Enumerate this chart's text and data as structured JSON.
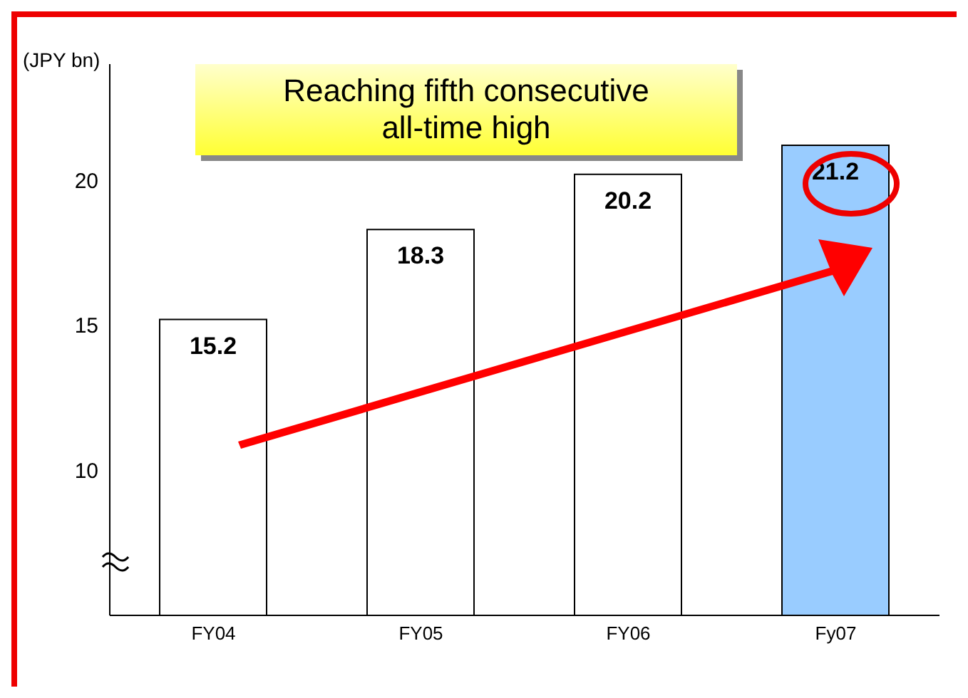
{
  "chart_data": {
    "type": "bar",
    "ylabel": "(JPY bn)",
    "annotations": [
      "Reaching fifth consecutive all-time high"
    ],
    "categories": [
      "FY04",
      "FY05",
      "FY06",
      "Fy07"
    ],
    "values": [
      15.2,
      18.3,
      20.2,
      21.2
    ],
    "colors": [
      "#ffffff",
      "#ffffff",
      "#ffffff",
      "#99ccff"
    ],
    "ylim": [
      5,
      24
    ],
    "yticks": [
      10,
      15,
      20
    ],
    "data_labels": true,
    "grid": false,
    "legend": false
  }
}
